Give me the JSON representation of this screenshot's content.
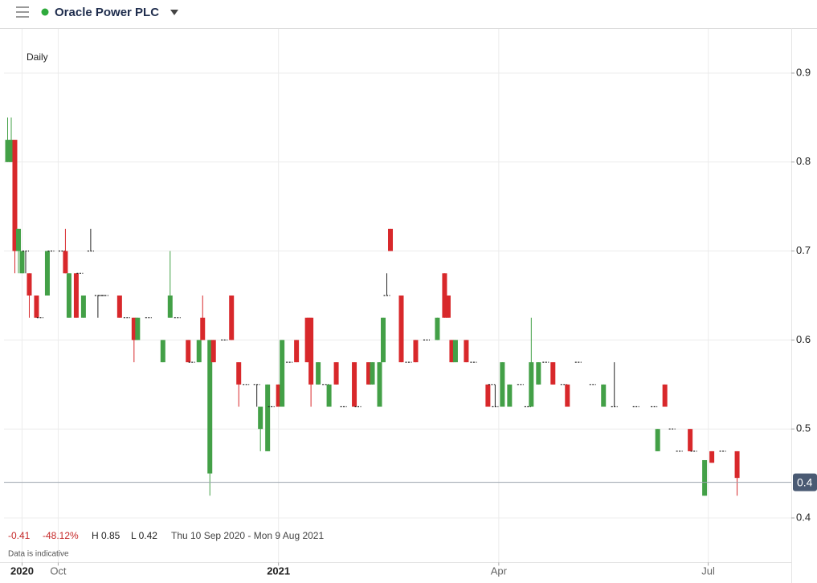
{
  "chart_data": {
    "type": "candlestick",
    "title": "Oracle Power PLC",
    "interval": "Daily",
    "x": [
      0,
      1,
      2,
      3,
      4,
      5,
      6,
      8,
      9,
      11,
      12,
      15,
      16,
      17,
      19,
      20,
      21,
      23,
      25,
      26,
      27,
      31,
      33,
      35,
      36,
      39,
      43,
      45,
      47,
      50,
      51,
      53,
      54,
      56,
      57,
      60,
      62,
      64,
      66,
      69,
      70,
      72,
      73,
      75,
      76,
      78,
      80,
      83,
      84,
      86,
      88,
      89,
      91,
      93,
      96,
      97,
      100,
      101,
      103,
      104,
      105,
      106,
      109,
      111,
      113,
      116,
      119,
      121,
      122,
      123,
      124,
      127,
      129,
      133,
      134,
      135,
      137,
      139,
      142,
      144,
      145,
      147,
      149,
      151,
      154,
      155,
      158,
      162,
      165,
      168,
      174,
      179,
      180,
      182,
      184,
      186,
      189,
      190,
      193,
      195,
      198,
      202
    ],
    "open": [
      0.8,
      0.8,
      0.825,
      0.7,
      0.675,
      0.7,
      0.675,
      0.65,
      0.625,
      0.65,
      0.7,
      0.7,
      0.7,
      0.625,
      0.675,
      0.675,
      0.625,
      0.7,
      0.65,
      0.65,
      0.65,
      0.65,
      0.625,
      0.625,
      0.6,
      0.625,
      0.575,
      0.625,
      0.625,
      0.6,
      0.575,
      0.575,
      0.625,
      0.45,
      0.6,
      0.6,
      0.65,
      0.575,
      0.55,
      0.55,
      0.5,
      0.475,
      0.525,
      0.55,
      0.525,
      0.575,
      0.6,
      0.625,
      0.625,
      0.55,
      0.55,
      0.525,
      0.575,
      0.525,
      0.575,
      0.525,
      0.575,
      0.55,
      0.525,
      0.575,
      0.65,
      0.725,
      0.65,
      0.575,
      0.6,
      0.6,
      0.6,
      0.675,
      0.65,
      0.6,
      0.575,
      0.6,
      0.575,
      0.55,
      0.55,
      0.525,
      0.525,
      0.525,
      0.55,
      0.525,
      0.525,
      0.55,
      0.575,
      0.575,
      0.55,
      0.55,
      0.575,
      0.55,
      0.525,
      0.525,
      0.525,
      0.525,
      0.475,
      0.55,
      0.5,
      0.475,
      0.5,
      0.475,
      0.425,
      0.475,
      0.475,
      0.475
    ],
    "high": [
      0.85,
      0.85,
      0.825,
      0.725,
      0.7,
      0.7,
      0.675,
      0.65,
      0.625,
      0.7,
      0.7,
      0.7,
      0.725,
      0.675,
      0.675,
      0.675,
      0.65,
      0.725,
      0.65,
      0.65,
      0.65,
      0.65,
      0.625,
      0.625,
      0.625,
      0.625,
      0.6,
      0.7,
      0.625,
      0.6,
      0.575,
      0.6,
      0.65,
      0.6,
      0.6,
      0.6,
      0.65,
      0.575,
      0.55,
      0.55,
      0.525,
      0.55,
      0.525,
      0.55,
      0.6,
      0.575,
      0.6,
      0.625,
      0.625,
      0.575,
      0.55,
      0.55,
      0.575,
      0.525,
      0.575,
      0.525,
      0.575,
      0.575,
      0.575,
      0.625,
      0.675,
      0.725,
      0.65,
      0.575,
      0.6,
      0.6,
      0.625,
      0.675,
      0.65,
      0.6,
      0.6,
      0.6,
      0.575,
      0.55,
      0.55,
      0.55,
      0.575,
      0.55,
      0.55,
      0.525,
      0.625,
      0.575,
      0.575,
      0.575,
      0.55,
      0.55,
      0.575,
      0.55,
      0.55,
      0.575,
      0.525,
      0.525,
      0.5,
      0.55,
      0.5,
      0.475,
      0.5,
      0.475,
      0.465,
      0.475,
      0.475,
      0.475
    ],
    "low": [
      0.8,
      0.8,
      0.675,
      0.675,
      0.675,
      0.675,
      0.625,
      0.625,
      0.625,
      0.65,
      0.7,
      0.7,
      0.675,
      0.625,
      0.625,
      0.675,
      0.625,
      0.7,
      0.625,
      0.65,
      0.65,
      0.625,
      0.625,
      0.575,
      0.6,
      0.625,
      0.575,
      0.625,
      0.625,
      0.575,
      0.575,
      0.575,
      0.6,
      0.425,
      0.575,
      0.6,
      0.6,
      0.525,
      0.55,
      0.525,
      0.475,
      0.475,
      0.525,
      0.525,
      0.525,
      0.575,
      0.575,
      0.575,
      0.525,
      0.55,
      0.55,
      0.525,
      0.55,
      0.525,
      0.525,
      0.525,
      0.55,
      0.55,
      0.525,
      0.575,
      0.65,
      0.7,
      0.575,
      0.575,
      0.575,
      0.6,
      0.6,
      0.625,
      0.625,
      0.575,
      0.575,
      0.575,
      0.575,
      0.525,
      0.55,
      0.525,
      0.525,
      0.525,
      0.55,
      0.525,
      0.525,
      0.55,
      0.575,
      0.55,
      0.55,
      0.525,
      0.575,
      0.55,
      0.525,
      0.525,
      0.525,
      0.525,
      0.475,
      0.525,
      0.5,
      0.475,
      0.475,
      0.475,
      0.425,
      0.462,
      0.475,
      0.425
    ],
    "close": [
      0.825,
      0.825,
      0.7,
      0.725,
      0.7,
      0.7,
      0.65,
      0.625,
      0.625,
      0.7,
      0.7,
      0.7,
      0.675,
      0.675,
      0.625,
      0.675,
      0.65,
      0.7,
      0.65,
      0.65,
      0.65,
      0.625,
      0.625,
      0.6,
      0.625,
      0.625,
      0.6,
      0.65,
      0.625,
      0.575,
      0.575,
      0.6,
      0.6,
      0.6,
      0.575,
      0.6,
      0.6,
      0.55,
      0.55,
      0.55,
      0.525,
      0.55,
      0.525,
      0.525,
      0.6,
      0.575,
      0.575,
      0.575,
      0.55,
      0.575,
      0.55,
      0.55,
      0.55,
      0.525,
      0.525,
      0.525,
      0.55,
      0.575,
      0.575,
      0.625,
      0.65,
      0.7,
      0.575,
      0.575,
      0.575,
      0.6,
      0.625,
      0.625,
      0.625,
      0.575,
      0.6,
      0.575,
      0.575,
      0.525,
      0.55,
      0.525,
      0.575,
      0.55,
      0.55,
      0.525,
      0.575,
      0.575,
      0.575,
      0.55,
      0.55,
      0.525,
      0.575,
      0.55,
      0.55,
      0.525,
      0.525,
      0.525,
      0.5,
      0.525,
      0.5,
      0.475,
      0.475,
      0.475,
      0.465,
      0.462,
      0.475,
      0.445
    ],
    "up_color": "#43a047",
    "down_color": "#d8282b",
    "flat_color": "#222222",
    "xlim": [
      -1,
      217
    ],
    "xticks": [
      {
        "value": 4,
        "label": "2020"
      },
      {
        "value": 14,
        "label": "Oct"
      },
      {
        "value": 75,
        "label": "2021"
      },
      {
        "value": 136,
        "label": "Apr"
      },
      {
        "value": 194,
        "label": "Jul"
      }
    ],
    "ylim": [
      0.35,
      0.95
    ],
    "yticks": [
      0.4,
      0.5,
      0.6,
      0.7,
      0.8,
      0.9
    ],
    "grid": true,
    "last_price": {
      "value": 0.44,
      "label": "0.4"
    },
    "stats": {
      "change": "-0.41",
      "change_pct": "-48.12%",
      "high": "H 0.85",
      "low": "L 0.42",
      "range": "Thu 10 Sep 2020 - Mon 9 Aug 2021",
      "note": "Data is indicative"
    }
  }
}
